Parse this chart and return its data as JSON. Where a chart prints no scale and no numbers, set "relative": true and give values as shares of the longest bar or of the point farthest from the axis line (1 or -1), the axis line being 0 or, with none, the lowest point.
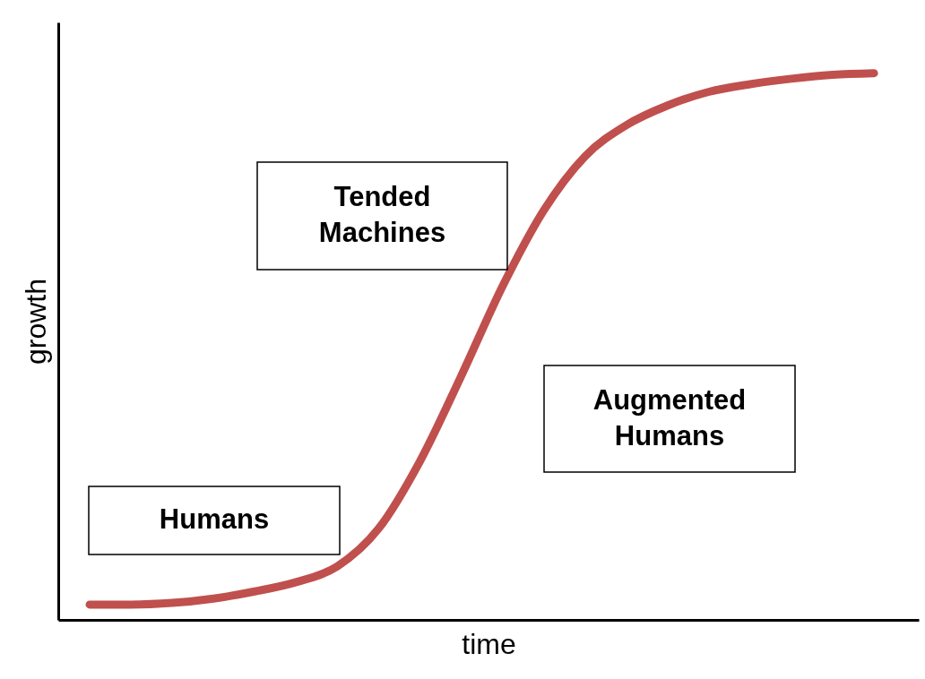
{
  "chart_data": {
    "type": "line",
    "relative": true,
    "xlabel": "time",
    "ylabel": "growth",
    "categories": [
      null,
      null,
      null,
      null,
      null,
      null,
      null,
      null,
      null,
      null,
      null,
      null,
      null,
      null,
      null,
      null,
      null,
      null,
      null,
      null
    ],
    "series": [
      {
        "color": "#c0504d",
        "values": [
          0.028,
          0.028,
          0.031,
          0.039,
          0.052,
          0.069,
          0.098,
          0.167,
          0.29,
          0.446,
          0.61,
          0.749,
          0.848,
          0.905,
          0.941,
          0.966,
          0.98,
          0.99,
          0.997,
          1
        ]
      }
    ],
    "annotations": [
      "Tended Machines",
      "Augmented Humans",
      "Humans"
    ]
  }
}
